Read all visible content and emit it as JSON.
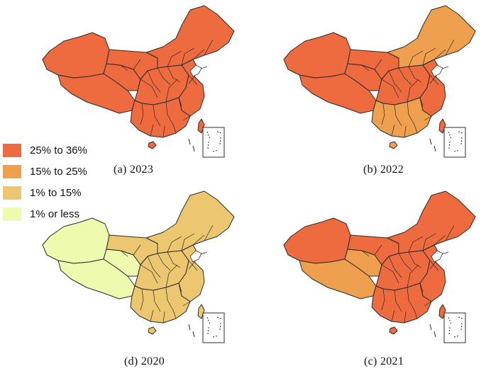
{
  "legend": {
    "items": [
      {
        "label": "25% to 36%",
        "color": "#ee6a3f"
      },
      {
        "label": "15% to 25%",
        "color": "#eea04e"
      },
      {
        "label": "1% to 15%",
        "color": "#ecc770"
      },
      {
        "label": "1% or less",
        "color": "#eefbae"
      }
    ]
  },
  "maps": [
    {
      "id": "a",
      "caption": "(a)  2023",
      "colors": {
        "west": "#ee6a3f",
        "north": "#ee6a3f",
        "center": "#ee6a3f",
        "east": "#ee6a3f",
        "south": "#ee6a3f",
        "qinghai": "#ee6a3f",
        "tibet": "#ee6a3f",
        "xinjiang": "#ee6a3f"
      }
    },
    {
      "id": "b",
      "caption": "(b)  2022",
      "colors": {
        "west": "#ee6a3f",
        "north": "#eea04e",
        "center": "#ee6a3f",
        "east": "#ee6a3f",
        "south": "#eea04e",
        "qinghai": "#ee6a3f",
        "tibet": "#ee6a3f",
        "xinjiang": "#ee6a3f"
      }
    },
    {
      "id": "c",
      "caption": "(c)  2021",
      "colors": {
        "west": "#ee6a3f",
        "north": "#ee6a3f",
        "center": "#ee6a3f",
        "east": "#ee6a3f",
        "south": "#ee6a3f",
        "qinghai": "#eea04e",
        "tibet": "#eea04e",
        "xinjiang": "#ee6a3f"
      }
    },
    {
      "id": "d",
      "caption": "(d)  2020",
      "colors": {
        "west": "#ecc770",
        "north": "#ecc770",
        "center": "#ecc770",
        "east": "#ecc770",
        "south": "#ecc770",
        "qinghai": "#eefbae",
        "tibet": "#eefbae",
        "xinjiang": "#eefbae"
      }
    }
  ]
}
